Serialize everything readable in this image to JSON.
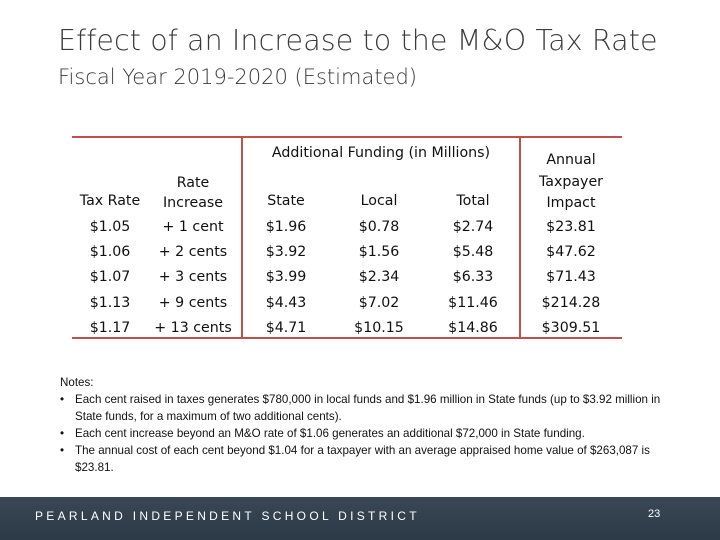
{
  "title": "Effect of an Increase to the M&O Tax Rate",
  "subtitle": "Fiscal Year 2019-2020 (Estimated)",
  "table": {
    "group_header": "Additional Funding (in Millions)",
    "headers": {
      "tax_rate": "Tax Rate",
      "rate_increase": "Rate\nIncrease",
      "state": "State",
      "local": "Local",
      "total": "Total",
      "annual": "Annual\nTaxpayer\nImpact"
    },
    "rows": [
      {
        "tax_rate": "$1.05",
        "rate_increase": "+ 1 cent",
        "state": "$1.96",
        "local": "$0.78",
        "total": "$2.74",
        "annual": "$23.81"
      },
      {
        "tax_rate": "$1.06",
        "rate_increase": "+ 2 cents",
        "state": "$3.92",
        "local": "$1.56",
        "total": "$5.48",
        "annual": "$47.62"
      },
      {
        "tax_rate": "$1.07",
        "rate_increase": "+ 3 cents",
        "state": "$3.99",
        "local": "$2.34",
        "total": "$6.33",
        "annual": "$71.43"
      },
      {
        "tax_rate": "$1.13",
        "rate_increase": "+ 9 cents",
        "state": "$4.43",
        "local": "$7.02",
        "total": "$11.46",
        "annual": "$214.28"
      },
      {
        "tax_rate": "$1.17",
        "rate_increase": "+ 13 cents",
        "state": "$4.71",
        "local": "$10.15",
        "total": "$14.86",
        "annual": "$309.51"
      }
    ]
  },
  "notes": {
    "heading": "Notes:",
    "items": [
      "Each cent raised in taxes generates $780,000 in local funds and $1.96 million in State funds (up to $3.92 million in State funds, for a maximum of two additional cents).",
      "Each cent increase beyond an M&O rate of $1.06 generates an additional $72,000 in State funding.",
      "The annual cost of each cent beyond $1.04 for a taxpayer with an average appraised home value of $263,087 is $23.81."
    ],
    "bullet": "•"
  },
  "footer": {
    "text": "PEARLAND INDEPENDENT SCHOOL DISTRICT",
    "page_number": "23"
  },
  "colors": {
    "rule": "#c0504d",
    "footer_bg": "#34414f"
  }
}
